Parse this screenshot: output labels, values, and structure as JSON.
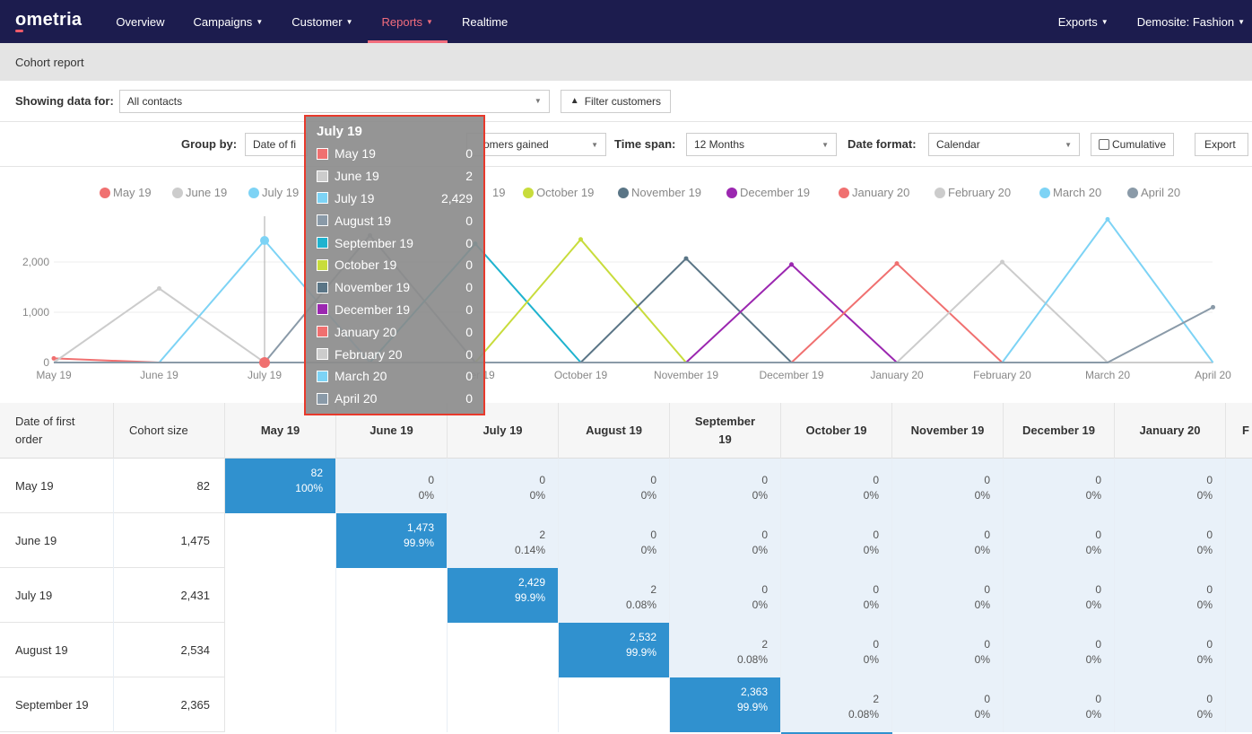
{
  "nav": {
    "logo": "ometria",
    "items": [
      {
        "label": "Overview",
        "caret": false,
        "active": false
      },
      {
        "label": "Campaigns",
        "caret": true,
        "active": false
      },
      {
        "label": "Customer",
        "caret": true,
        "active": false
      },
      {
        "label": "Reports",
        "caret": true,
        "active": true
      },
      {
        "label": "Realtime",
        "caret": false,
        "active": false
      }
    ],
    "right": [
      {
        "label": "Exports",
        "caret": true
      },
      {
        "label": "Demosite: Fashion",
        "caret": true
      }
    ],
    "active_color": "#f26d7d",
    "bg_color": "#1c1c4e"
  },
  "page": {
    "title": "Cohort report"
  },
  "filters": {
    "showing_label": "Showing data for:",
    "showing_value": "All contacts",
    "filter_button": "Filter customers",
    "group_by_label": "Group by:",
    "group_by_value": "Date of fi",
    "metric_value": "omers gained",
    "time_span_label": "Time span:",
    "time_span_value": "12 Months",
    "date_format_label": "Date format:",
    "date_format_value": "Calendar",
    "cumulative_label": "Cumulative",
    "export_label": "Export"
  },
  "chart_data": {
    "type": "line",
    "categories": [
      "May 19",
      "June 19",
      "July 19",
      "August 19",
      "September 19",
      "October 19",
      "November 19",
      "December 19",
      "January 20",
      "February 20",
      "March 20",
      "April 20"
    ],
    "x_tick_labels": [
      "May 19",
      "June 19",
      "July 19",
      "er 19",
      "October 19",
      "November 19",
      "December 19",
      "January 20",
      "February 20",
      "March 20",
      "April 20"
    ],
    "y_ticks": [
      0,
      1000,
      2000
    ],
    "y_tick_labels": [
      "0",
      "1,000",
      "2,000"
    ],
    "ylim": [
      0,
      2600
    ],
    "legend_position": "top",
    "series": [
      {
        "name": "May 19",
        "color": "#f07070",
        "values": [
          82,
          0,
          0,
          0,
          0,
          0,
          0,
          0,
          0,
          0,
          0,
          0
        ]
      },
      {
        "name": "June 19",
        "color": "#cccccc",
        "values": [
          0,
          1473,
          2,
          0,
          0,
          0,
          0,
          0,
          0,
          0,
          0,
          0
        ]
      },
      {
        "name": "July 19",
        "color": "#7dd3f5",
        "values": [
          0,
          0,
          2429,
          2,
          0,
          0,
          0,
          0,
          0,
          0,
          0,
          0
        ]
      },
      {
        "name": "August 19",
        "color": "#8a9aa8",
        "values": [
          0,
          0,
          0,
          2532,
          2,
          0,
          0,
          0,
          0,
          0,
          0,
          0
        ]
      },
      {
        "name": "September 19",
        "color": "#1fb3cf",
        "values": [
          0,
          0,
          0,
          0,
          2363,
          2,
          0,
          0,
          0,
          0,
          0,
          0
        ]
      },
      {
        "name": "October 19",
        "color": "#c8dc3c",
        "values": [
          0,
          0,
          0,
          0,
          0,
          2450,
          0,
          0,
          0,
          0,
          0,
          0
        ]
      },
      {
        "name": "November 19",
        "color": "#5a7586",
        "values": [
          0,
          0,
          0,
          0,
          0,
          0,
          2070,
          0,
          0,
          0,
          0,
          0
        ]
      },
      {
        "name": "December 19",
        "color": "#9b27b0",
        "values": [
          0,
          0,
          0,
          0,
          0,
          0,
          0,
          1950,
          0,
          0,
          0,
          0
        ]
      },
      {
        "name": "January 20",
        "color": "#f07070",
        "values": [
          0,
          0,
          0,
          0,
          0,
          0,
          0,
          0,
          1970,
          0,
          0,
          0
        ]
      },
      {
        "name": "February 20",
        "color": "#cccccc",
        "values": [
          0,
          0,
          0,
          0,
          0,
          0,
          0,
          0,
          0,
          2000,
          0,
          0
        ]
      },
      {
        "name": "March 20",
        "color": "#7dd3f5",
        "values": [
          0,
          0,
          0,
          0,
          0,
          0,
          0,
          0,
          0,
          0,
          2850,
          0
        ]
      },
      {
        "name": "April 20",
        "color": "#8a9aa8",
        "values": [
          0,
          0,
          0,
          0,
          0,
          0,
          0,
          0,
          0,
          0,
          0,
          1100
        ]
      }
    ],
    "legend_visible": [
      "May 19",
      "June 19",
      "July 19",
      "October 19",
      "November 19",
      "December 19",
      "January 20",
      "February 20",
      "March 20",
      "April 20"
    ],
    "legend_partial": "19",
    "highlight_index": 2
  },
  "tooltip": {
    "title": "July 19",
    "rows": [
      {
        "name": "May 19",
        "value": "0",
        "color": "#f07070"
      },
      {
        "name": "June 19",
        "value": "2",
        "color": "#cccccc"
      },
      {
        "name": "July 19",
        "value": "2,429",
        "color": "#7dd3f5"
      },
      {
        "name": "August 19",
        "value": "0",
        "color": "#8a9aa8"
      },
      {
        "name": "September 19",
        "value": "0",
        "color": "#1fb3cf"
      },
      {
        "name": "October 19",
        "value": "0",
        "color": "#c8dc3c"
      },
      {
        "name": "November 19",
        "value": "0",
        "color": "#5a7586"
      },
      {
        "name": "December 19",
        "value": "0",
        "color": "#9b27b0"
      },
      {
        "name": "January 20",
        "value": "0",
        "color": "#f07070"
      },
      {
        "name": "February 20",
        "value": "0",
        "color": "#cccccc"
      },
      {
        "name": "March 20",
        "value": "0",
        "color": "#7dd3f5"
      },
      {
        "name": "April 20",
        "value": "0",
        "color": "#8a9aa8"
      }
    ]
  },
  "table": {
    "headers": [
      "Date of first order",
      "Cohort size",
      "May 19",
      "June 19",
      "July 19",
      "August 19",
      "September 19",
      "October 19",
      "November 19",
      "December 19",
      "January 20",
      "F"
    ],
    "rows": [
      {
        "name": "May 19",
        "size": "82",
        "start": 0,
        "cells": [
          [
            "82",
            "100%"
          ],
          [
            "0",
            "0%"
          ],
          [
            "0",
            "0%"
          ],
          [
            "0",
            "0%"
          ],
          [
            "0",
            "0%"
          ],
          [
            "0",
            "0%"
          ],
          [
            "0",
            "0%"
          ],
          [
            "0",
            "0%"
          ],
          [
            "0",
            "0%"
          ]
        ]
      },
      {
        "name": "June 19",
        "size": "1,475",
        "start": 1,
        "cells": [
          [
            "1,473",
            "99.9%"
          ],
          [
            "2",
            "0.14%"
          ],
          [
            "0",
            "0%"
          ],
          [
            "0",
            "0%"
          ],
          [
            "0",
            "0%"
          ],
          [
            "0",
            "0%"
          ],
          [
            "0",
            "0%"
          ],
          [
            "0",
            "0%"
          ]
        ]
      },
      {
        "name": "July 19",
        "size": "2,431",
        "start": 2,
        "cells": [
          [
            "2,429",
            "99.9%"
          ],
          [
            "2",
            "0.08%"
          ],
          [
            "0",
            "0%"
          ],
          [
            "0",
            "0%"
          ],
          [
            "0",
            "0%"
          ],
          [
            "0",
            "0%"
          ],
          [
            "0",
            "0%"
          ]
        ]
      },
      {
        "name": "August 19",
        "size": "2,534",
        "start": 3,
        "cells": [
          [
            "2,532",
            "99.9%"
          ],
          [
            "2",
            "0.08%"
          ],
          [
            "0",
            "0%"
          ],
          [
            "0",
            "0%"
          ],
          [
            "0",
            "0%"
          ],
          [
            "0",
            "0%"
          ]
        ]
      },
      {
        "name": "September 19",
        "size": "2,365",
        "start": 4,
        "cells": [
          [
            "2,363",
            "99.9%"
          ],
          [
            "2",
            "0.08%"
          ],
          [
            "0",
            "0%"
          ],
          [
            "0",
            "0%"
          ],
          [
            "0",
            "0%"
          ]
        ]
      }
    ]
  }
}
